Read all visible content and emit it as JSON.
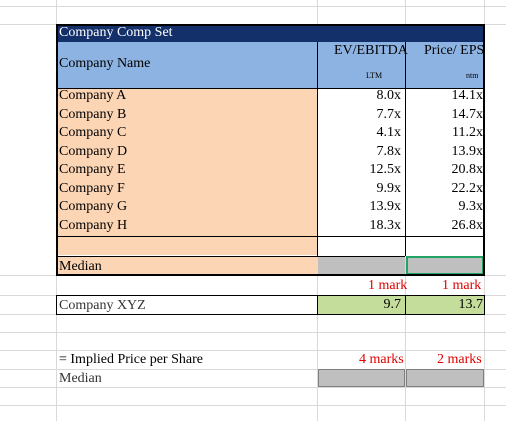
{
  "table": {
    "title": "Company Comp Set",
    "header": {
      "name_label": "Company Name",
      "ev_label": "EV/EBITDA",
      "pe_label": "Price/ EPS",
      "ev_sub": "LTM",
      "pe_sub": "ntm"
    },
    "rows": [
      {
        "name": "Company A",
        "ev": "8.0x",
        "pe": "14.1x"
      },
      {
        "name": "Company B",
        "ev": "7.7x",
        "pe": "14.7x"
      },
      {
        "name": "Company C",
        "ev": "4.1x",
        "pe": "11.2x"
      },
      {
        "name": "Company D",
        "ev": "7.8x",
        "pe": "13.9x"
      },
      {
        "name": "Company E",
        "ev": "12.5x",
        "pe": "20.8x"
      },
      {
        "name": "Company F",
        "ev": "9.9x",
        "pe": "22.2x"
      },
      {
        "name": "Company G",
        "ev": "13.9x",
        "pe": "9.3x"
      },
      {
        "name": "Company H",
        "ev": "18.3x",
        "pe": "26.8x"
      }
    ],
    "median_label": "Median",
    "median_ev": "",
    "median_pe": ""
  },
  "marks": {
    "ev_mark": "1 mark",
    "pe_mark": "1 mark",
    "implied_ev_mark": "4 marks",
    "implied_pe_mark": "2 marks"
  },
  "target": {
    "name": "Company XYZ",
    "ev": "9.7",
    "pe": "13.7"
  },
  "implied": {
    "label": "= Implied Price per Share",
    "median_label": "Median",
    "ev": "",
    "pe": ""
  },
  "colors": {
    "title_bg": "#14306b",
    "header_bg": "#8db3e2",
    "names_bg": "#fcd5b4",
    "input_bg": "#bfbfbf",
    "target_bg": "#c4dd9b",
    "marks_color": "#e00000",
    "selected_border": "#21a366"
  }
}
